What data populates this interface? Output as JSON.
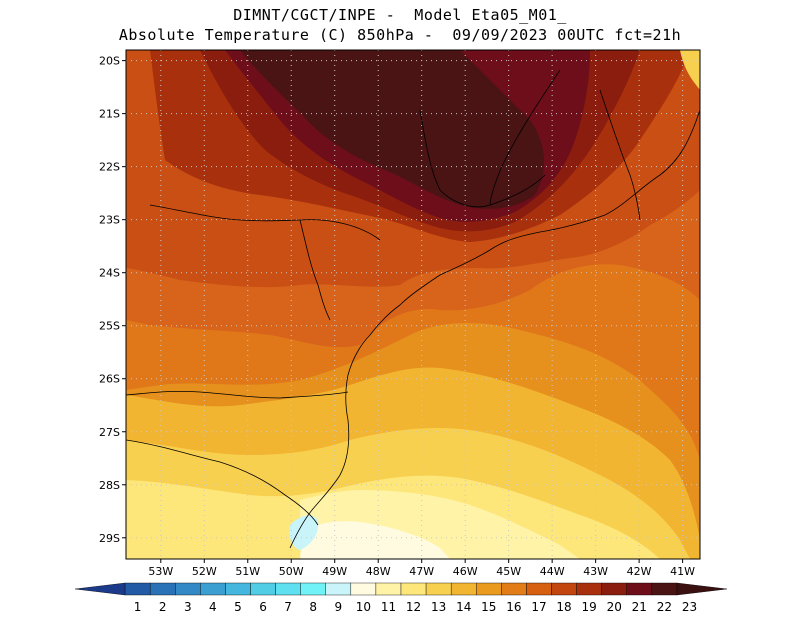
{
  "header": {
    "line1": "DIMNT/CGCT/INPE -  Model Eta05_M01_",
    "line2": "Absolute Temperature (C) 850hPa -  09/09/2023 00UTC fct=21h"
  },
  "map": {
    "lat_labels": [
      "20S",
      "21S",
      "22S",
      "23S",
      "24S",
      "25S",
      "26S",
      "27S",
      "28S",
      "29S"
    ],
    "lon_labels": [
      "53W",
      "52W",
      "51W",
      "50W",
      "49W",
      "48W",
      "47W",
      "46W",
      "45W",
      "44W",
      "43W",
      "42W",
      "41W"
    ],
    "lat_range": [
      -29.4,
      -19.8
    ],
    "lon_range": [
      -53.8,
      -40.6
    ],
    "grid": "dotted",
    "projection": "lat-lon"
  },
  "colorbar": {
    "labels": [
      "1",
      "2",
      "3",
      "4",
      "5",
      "6",
      "7",
      "8",
      "9",
      "10",
      "11",
      "12",
      "13",
      "14",
      "15",
      "16",
      "17",
      "18",
      "19",
      "20",
      "21",
      "22",
      "23"
    ],
    "colors": [
      "#1b3a8a",
      "#235aa6",
      "#2a72b8",
      "#3389c5",
      "#3b9fd1",
      "#45b6dd",
      "#52cde6",
      "#5ee0f0",
      "#70f2f6",
      "#c8f4fa",
      "#fffbe0",
      "#fff3a8",
      "#fde67a",
      "#f8d04f",
      "#f2b531",
      "#eb9a20",
      "#e27c16",
      "#d65f10",
      "#c2460e",
      "#a8300d",
      "#8a1d0e",
      "#6e0e1b",
      "#4a1314",
      "#3a1010"
    ]
  }
}
